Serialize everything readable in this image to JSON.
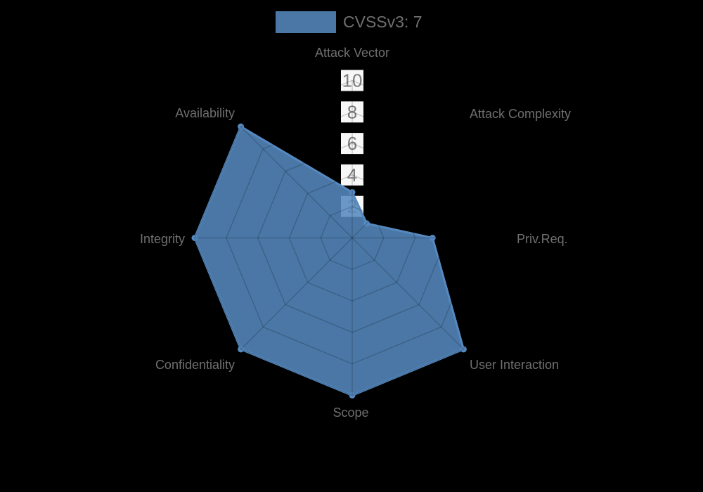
{
  "legend": {
    "label": "CVSSv3: 7"
  },
  "chart_data": {
    "type": "radar",
    "title": "",
    "legend_position": "top",
    "grid": true,
    "categories": [
      "Attack Vector",
      "Attack Complexity",
      "Priv.Req.",
      "User Interaction",
      "Scope",
      "Confidentiality",
      "Integrity",
      "Availability"
    ],
    "series": [
      {
        "name": "CVSSv3: 7",
        "values": [
          2.9,
          1.3,
          5.1,
          10,
          10,
          10,
          10,
          10
        ]
      }
    ],
    "axis": {
      "min": 0,
      "max": 10,
      "ticks": [
        10,
        8,
        6,
        4,
        2
      ]
    },
    "colors": {
      "series_fill": "#5589BF",
      "series_fill_rgba": "rgba(85,137,191,0.87)",
      "series_border": "#5589BF",
      "grid_line_rgba": "rgba(0,0,0,0.2)",
      "tick_backdrop": "#ffffff",
      "tick_text": "#7d7d7d",
      "label_text": "#6f6f6f",
      "background": "#000000"
    }
  }
}
